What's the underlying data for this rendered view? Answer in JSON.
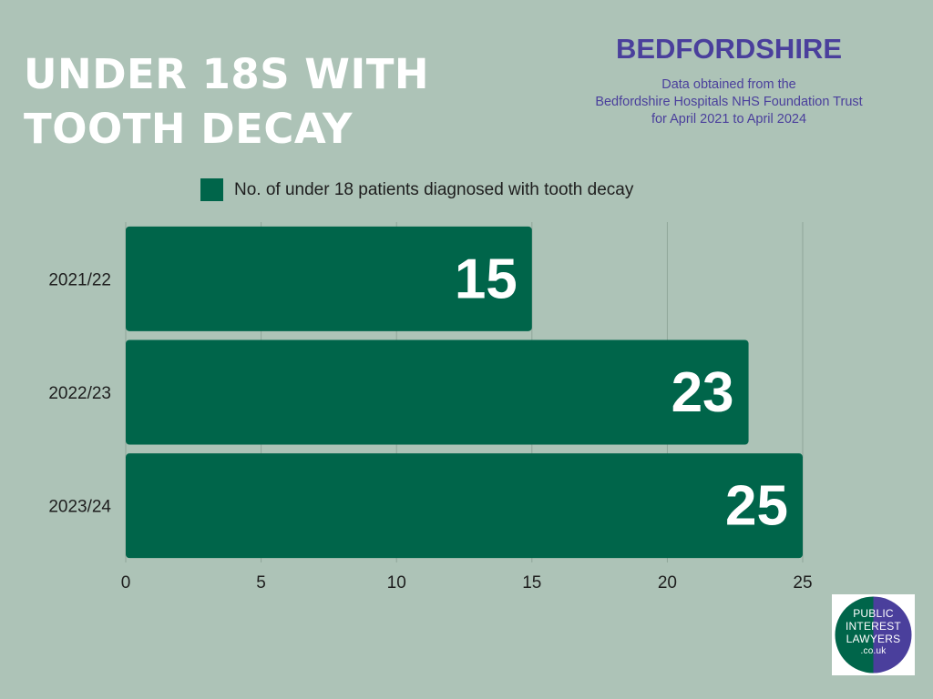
{
  "header": {
    "title_lines": [
      "UNDER 18S WITH",
      "TOOTH DECAY"
    ],
    "region": "BEDFORDSHIRE",
    "source_lines": [
      "Data obtained from the",
      "Bedfordshire Hospitals NHS Foundation Trust",
      "for April 2021 to April 2024"
    ]
  },
  "chart_data": {
    "type": "bar",
    "orientation": "horizontal",
    "categories": [
      "2021/22",
      "2022/23",
      "2023/24"
    ],
    "series": [
      {
        "name": "No. of under 18 patients diagnosed with tooth decay",
        "values": [
          15,
          23,
          25
        ],
        "color": "#00654a"
      }
    ],
    "xlim": [
      0,
      25
    ],
    "xticks": [
      0,
      5,
      10,
      15,
      20,
      25
    ],
    "grid": true,
    "legend_position": "top",
    "data_labels": true
  },
  "colors": {
    "background": "#adc3b7",
    "bar": "#00654a",
    "accent": "#4a3f9c",
    "logo_green": "#00654a",
    "logo_purple": "#4a3f9c"
  },
  "logo": {
    "lines": [
      "PUBLIC",
      "INTEREST",
      "LAWYERS",
      ".co.uk"
    ]
  }
}
